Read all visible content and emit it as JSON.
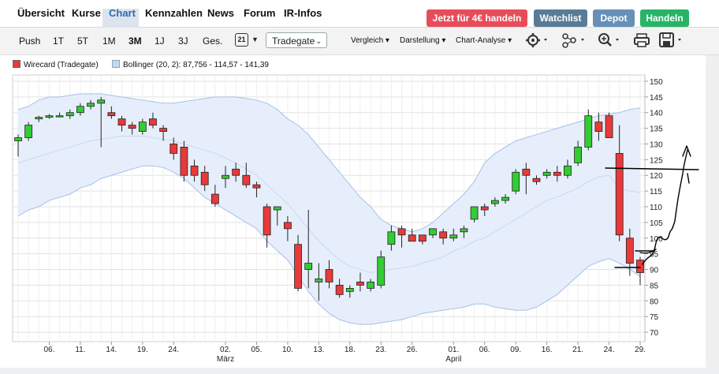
{
  "nav": {
    "items": [
      "Übersicht",
      "Kurse",
      "Chart",
      "Kennzahlen",
      "News",
      "Forum",
      "IR-Infos"
    ],
    "active": "Chart",
    "buttons": {
      "promo": "Jetzt für 4€ handeln",
      "watchlist": "Watchlist",
      "depot": "Depot",
      "handeln": "Handeln"
    }
  },
  "toolbar": {
    "periods": [
      "Push",
      "1T",
      "5T",
      "1M",
      "3M",
      "1J",
      "3J",
      "Ges."
    ],
    "selected_period": "3M",
    "calendar_day": "21",
    "exchange": "Tradegate",
    "menus": [
      "Vergleich",
      "Darstellung",
      "Chart-Analyse"
    ]
  },
  "legend": {
    "series": "Wirecard (Tradegate)",
    "bollinger": "Bollinger (20, 2): 87,756 - 114,57 - 141,39"
  },
  "colors": {
    "up": "#33cc33",
    "down": "#e83a3a",
    "band_fill": "#e6eefb",
    "band_line": "#a8c0e8",
    "promo": "#e84c5a",
    "watchlist": "#5a7b95",
    "depot": "#6690b8",
    "handeln": "#27b468"
  },
  "chart_data": {
    "type": "candlestick",
    "ylim": [
      67,
      152
    ],
    "y_ticks": [
      70,
      75,
      80,
      85,
      90,
      95,
      100,
      105,
      110,
      115,
      120,
      125,
      130,
      135,
      140,
      145,
      150
    ],
    "x_ticks": [
      {
        "label": "06.",
        "i": 3
      },
      {
        "label": "11.",
        "i": 6
      },
      {
        "label": "14.",
        "i": 9
      },
      {
        "label": "19.",
        "i": 12
      },
      {
        "label": "24.",
        "i": 15
      },
      {
        "label": "02.",
        "i": 20,
        "month": "März"
      },
      {
        "label": "05.",
        "i": 23
      },
      {
        "label": "10.",
        "i": 26
      },
      {
        "label": "13.",
        "i": 29
      },
      {
        "label": "18.",
        "i": 32
      },
      {
        "label": "23.",
        "i": 35
      },
      {
        "label": "26.",
        "i": 38
      },
      {
        "label": "01.",
        "i": 42,
        "month": "April"
      },
      {
        "label": "06.",
        "i": 45
      },
      {
        "label": "09.",
        "i": 48
      },
      {
        "label": "16.",
        "i": 51
      },
      {
        "label": "21.",
        "i": 54
      },
      {
        "label": "24.",
        "i": 57
      },
      {
        "label": "29.",
        "i": 60
      }
    ],
    "candles": [
      [
        131,
        133,
        126,
        132
      ],
      [
        132,
        137,
        131,
        136
      ],
      [
        138,
        139,
        137,
        138.5
      ],
      [
        138.5,
        139.5,
        138,
        139
      ],
      [
        139,
        140,
        138.5,
        139
      ],
      [
        139,
        141,
        138,
        140
      ],
      [
        140,
        143,
        139,
        142
      ],
      [
        142,
        144,
        141,
        143
      ],
      [
        143,
        145,
        129,
        144
      ],
      [
        140,
        142,
        138,
        139
      ],
      [
        138,
        139,
        134,
        136
      ],
      [
        136,
        137,
        133,
        135
      ],
      [
        134,
        138,
        133,
        137
      ],
      [
        138,
        140,
        135,
        136
      ],
      [
        135,
        136,
        131,
        134
      ],
      [
        130,
        132,
        125,
        127
      ],
      [
        129,
        131,
        118,
        120
      ],
      [
        123,
        125,
        118,
        120
      ],
      [
        121,
        123,
        115,
        117
      ],
      [
        114,
        117,
        110,
        111
      ],
      [
        119,
        123,
        116,
        120
      ],
      [
        122,
        124,
        118,
        120
      ],
      [
        120,
        124,
        116,
        117
      ],
      [
        117,
        118,
        113,
        116
      ],
      [
        110,
        111,
        97,
        101
      ],
      [
        109,
        110,
        104,
        110
      ],
      [
        105,
        107,
        99,
        103
      ],
      [
        98,
        101,
        83,
        84
      ],
      [
        90,
        109,
        84,
        92
      ],
      [
        86,
        92,
        80,
        87
      ],
      [
        90,
        93,
        84,
        86
      ],
      [
        85,
        87,
        81,
        82
      ],
      [
        83,
        85,
        81,
        84
      ],
      [
        86,
        89,
        83,
        85
      ],
      [
        84,
        87,
        83,
        86
      ],
      [
        85,
        96,
        84,
        94
      ],
      [
        98,
        104,
        96,
        102
      ],
      [
        103,
        104,
        97,
        101
      ],
      [
        101,
        103,
        99,
        99
      ],
      [
        101,
        101,
        98,
        99
      ],
      [
        101,
        103,
        100,
        103
      ],
      [
        102,
        103,
        98,
        100
      ],
      [
        100,
        103,
        99,
        101
      ],
      [
        102,
        104,
        100,
        103
      ],
      [
        106,
        110,
        105,
        110
      ],
      [
        110,
        111,
        107,
        109
      ],
      [
        111,
        113,
        110,
        112
      ],
      [
        112,
        114,
        111,
        113
      ],
      [
        115,
        122,
        114,
        121
      ],
      [
        122,
        124,
        114,
        120
      ],
      [
        119,
        120,
        117,
        118
      ],
      [
        120,
        122,
        119,
        121
      ],
      [
        121,
        123,
        118,
        120
      ],
      [
        120,
        125,
        119,
        123
      ],
      [
        124,
        131,
        123,
        129
      ],
      [
        129,
        141,
        128,
        139
      ],
      [
        137,
        140,
        131,
        134
      ],
      [
        139,
        140,
        132,
        132
      ],
      [
        127,
        136,
        99,
        101
      ],
      [
        100,
        103,
        88,
        92
      ],
      [
        93,
        94,
        85,
        89
      ]
    ],
    "bollinger": {
      "upper": [
        141,
        142,
        144,
        145,
        145,
        145.5,
        146,
        146,
        146,
        145.5,
        145,
        144.5,
        144,
        143.5,
        143,
        143,
        143.5,
        144,
        144.5,
        145,
        145,
        145,
        144.5,
        144,
        143,
        141,
        138,
        136,
        133,
        129,
        125,
        121,
        117,
        113,
        110,
        106,
        104,
        103,
        102,
        103,
        105,
        108,
        111,
        114,
        118,
        124,
        127,
        129,
        131,
        132,
        133,
        134,
        135,
        136,
        137,
        138,
        139,
        139.5,
        140,
        141,
        141.5
      ],
      "middle": [
        124,
        125,
        126,
        127,
        128,
        129,
        130,
        131,
        131.5,
        132,
        132.5,
        132.5,
        132.5,
        132,
        131.5,
        131,
        130,
        129,
        128,
        127,
        125.5,
        124,
        122,
        120,
        117,
        114,
        111,
        107,
        103,
        99,
        96,
        93,
        91,
        90,
        89,
        89.5,
        90,
        90.5,
        91,
        92,
        93,
        94,
        96,
        97,
        99,
        100,
        102,
        104,
        106,
        108,
        110,
        112,
        113,
        114.5,
        116,
        118,
        119.5,
        120,
        116,
        115,
        114.6
      ],
      "lower": [
        107,
        109,
        110,
        112,
        113,
        114,
        116,
        117,
        119,
        120,
        121,
        122,
        123,
        123,
        122.5,
        121,
        119,
        116,
        113,
        111,
        109,
        107,
        105,
        103,
        99,
        96,
        93,
        88,
        83,
        79,
        76,
        74,
        73,
        72.5,
        72.5,
        73,
        73.5,
        74,
        75,
        76,
        76.5,
        77,
        77.5,
        78,
        79,
        79,
        78,
        77.5,
        77,
        77,
        78,
        80,
        82,
        85,
        88,
        91,
        92.5,
        93.5,
        92,
        90,
        87.8
      ]
    }
  }
}
